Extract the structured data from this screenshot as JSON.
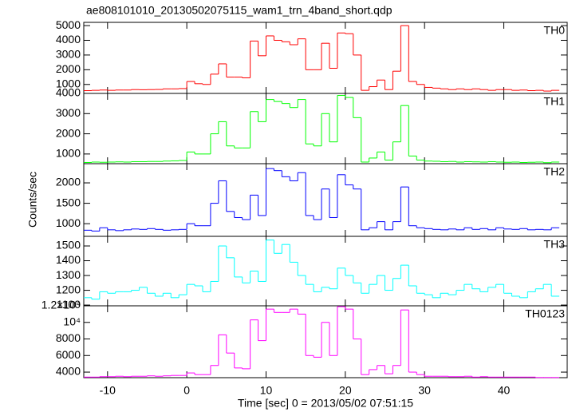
{
  "chart_data": {
    "type": "histogram",
    "title": "ae808101010_20130502075115_wam1_trn_4band_short.qdp",
    "xlabel": "Time [sec] 0 = 2013/05/02 07:51:15",
    "ylabel": "Counts/sec",
    "xlim": [
      -13,
      48
    ],
    "xticks": [
      -10,
      0,
      10,
      20,
      30,
      40
    ],
    "bins": [
      -13,
      -12,
      -11,
      -10,
      -9,
      -8,
      -7,
      -6,
      -5,
      -4,
      -3,
      -2,
      -1,
      0,
      1,
      2,
      3,
      4,
      5,
      6,
      7,
      8,
      9,
      10,
      11,
      12,
      13,
      14,
      15,
      16,
      17,
      18,
      19,
      20,
      21,
      22,
      23,
      24,
      25,
      26,
      27,
      28,
      29,
      30,
      31,
      32,
      33,
      34,
      35,
      36,
      37,
      38,
      39,
      40,
      41,
      42,
      43,
      44,
      45,
      46,
      47
    ],
    "panels": [
      {
        "name": "TH0",
        "color": "#ff0000",
        "ylim": [
          390,
          5220
        ],
        "yticks": [
          1000,
          2000,
          3000,
          4000,
          5000
        ],
        "values": [
          580,
          600,
          620,
          600,
          620,
          620,
          650,
          640,
          650,
          660,
          700,
          700,
          720,
          1200,
          1050,
          1000,
          1700,
          2400,
          1500,
          1500,
          1450,
          3950,
          2950,
          4300,
          4000,
          3900,
          3700,
          4100,
          2000,
          2000,
          3800,
          2100,
          4500,
          4450,
          3000,
          600,
          850,
          1300,
          650,
          1900,
          5000,
          1200,
          1000,
          800,
          750,
          700,
          650,
          700,
          650,
          700,
          650,
          600,
          650,
          650,
          600,
          620,
          580,
          600,
          550,
          600
        ]
      },
      {
        "name": "TH1",
        "color": "#00ff00",
        "ylim": [
          520,
          4000
        ],
        "yticks": [
          1000,
          2000,
          3000,
          4000
        ],
        "values": [
          580,
          600,
          590,
          600,
          610,
          600,
          620,
          620,
          630,
          630,
          650,
          660,
          680,
          1100,
          1000,
          1000,
          2000,
          2600,
          1400,
          1300,
          1300,
          3100,
          2600,
          3700,
          3600,
          3500,
          3300,
          3700,
          1500,
          1400,
          3000,
          1600,
          3900,
          3800,
          2800,
          600,
          800,
          1100,
          700,
          1600,
          3400,
          900,
          700,
          650,
          640,
          620,
          630,
          600,
          620,
          610,
          600,
          620,
          600,
          590,
          600,
          580,
          590,
          600,
          570,
          600
        ]
      },
      {
        "name": "TH2",
        "color": "#0000ff",
        "ylim": [
          690,
          2470
        ],
        "yticks": [
          1000,
          1500,
          2000
        ],
        "values": [
          840,
          820,
          900,
          850,
          830,
          850,
          870,
          860,
          880,
          860,
          840,
          850,
          860,
          1000,
          950,
          950,
          1500,
          2050,
          1300,
          1150,
          1100,
          1700,
          1200,
          2350,
          2300,
          2150,
          2050,
          2250,
          1200,
          1100,
          1850,
          1150,
          2200,
          1950,
          1850,
          850,
          900,
          1050,
          850,
          1050,
          1900,
          950,
          900,
          880,
          860,
          850,
          870,
          850,
          900,
          860,
          880,
          850,
          900,
          870,
          860,
          880,
          850,
          860,
          850,
          900
        ]
      },
      {
        "name": "TH3",
        "color": "#00ffff",
        "ylim": [
          1095,
          1565
        ],
        "yticks": [
          1100,
          1200,
          1300,
          1400,
          1500
        ],
        "values": [
          1150,
          1140,
          1190,
          1180,
          1190,
          1190,
          1200,
          1220,
          1180,
          1160,
          1180,
          1150,
          1170,
          1240,
          1230,
          1190,
          1260,
          1500,
          1420,
          1290,
          1250,
          1330,
          1260,
          1540,
          1450,
          1510,
          1390,
          1300,
          1240,
          1190,
          1220,
          1210,
          1350,
          1300,
          1250,
          1180,
          1240,
          1300,
          1200,
          1280,
          1370,
          1230,
          1180,
          1170,
          1150,
          1180,
          1170,
          1200,
          1240,
          1210,
          1190,
          1220,
          1240,
          1180,
          1160,
          1150,
          1190,
          1210,
          1240,
          1160
        ]
      },
      {
        "name": "TH0123",
        "color": "#ff00ff",
        "ylim": [
          3330,
          12000
        ],
        "yticks": [
          4000,
          6000,
          8000,
          {
            "value": 10000,
            "label": "10⁴"
          },
          {
            "value": 12000,
            "label": "1.2×10⁴"
          }
        ],
        "values": [
          3400,
          3400,
          3450,
          3450,
          3500,
          3450,
          3500,
          3500,
          3550,
          3500,
          3550,
          3600,
          3600,
          3900,
          3700,
          3700,
          4800,
          8500,
          6300,
          4500,
          4400,
          10300,
          7800,
          11600,
          11200,
          11200,
          11600,
          11000,
          6000,
          5800,
          10000,
          6000,
          11900,
          11600,
          8000,
          3700,
          4300,
          4800,
          3800,
          4800,
          11500,
          4000,
          3700,
          3500,
          3500,
          3500,
          3450,
          3450,
          3500,
          3400,
          3450,
          3400,
          3400,
          3400,
          3400,
          3400,
          3400,
          3350,
          3350,
          3350
        ]
      }
    ]
  }
}
